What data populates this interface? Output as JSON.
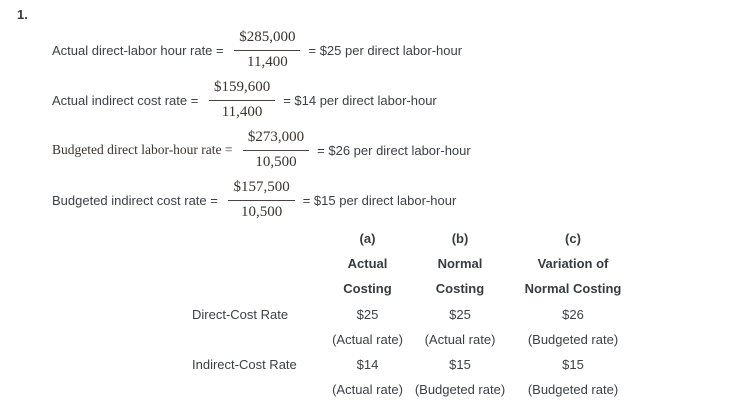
{
  "colors": {
    "background": "#ffffff",
    "body_text": "#3c4046",
    "math_text": "#3a332f"
  },
  "item_number": "1.",
  "equations": [
    {
      "label": "Actual direct-labor hour rate = ",
      "numerator": "$285,000",
      "denominator": "11,400",
      "result": "= $25 per direct labor-hour"
    },
    {
      "label": "Actual indirect cost rate = ",
      "numerator": "$159,600",
      "denominator": "11,400",
      "result": "= $14 per direct labor-hour"
    },
    {
      "label": "Budgeted direct labor-hour rate = ",
      "numerator": "$273,000",
      "denominator": "10,500",
      "result": "= $26 per direct labor-hour"
    },
    {
      "label": "Budgeted indirect cost rate = ",
      "numerator": "$157,500",
      "denominator": "10,500",
      "result": "= $15 per direct labor-hour"
    }
  ],
  "table": {
    "column_letters": [
      "(a)",
      "(b)",
      "(c)"
    ],
    "column_titles_line1": [
      "Actual",
      "Normal",
      "Variation of"
    ],
    "column_titles_line2": [
      "Costing",
      "Costing",
      "Normal Costing"
    ],
    "rows": [
      {
        "label": "Direct-Cost Rate",
        "values": [
          "$25",
          "$25",
          "$26"
        ],
        "rate_types": [
          "(Actual rate)",
          "(Actual rate)",
          "(Budgeted rate)"
        ]
      },
      {
        "label": "Indirect-Cost Rate",
        "values": [
          "$14",
          "$15",
          "$15"
        ],
        "rate_types": [
          "(Actual rate)",
          "(Budgeted rate)",
          "(Budgeted rate)"
        ]
      }
    ]
  }
}
